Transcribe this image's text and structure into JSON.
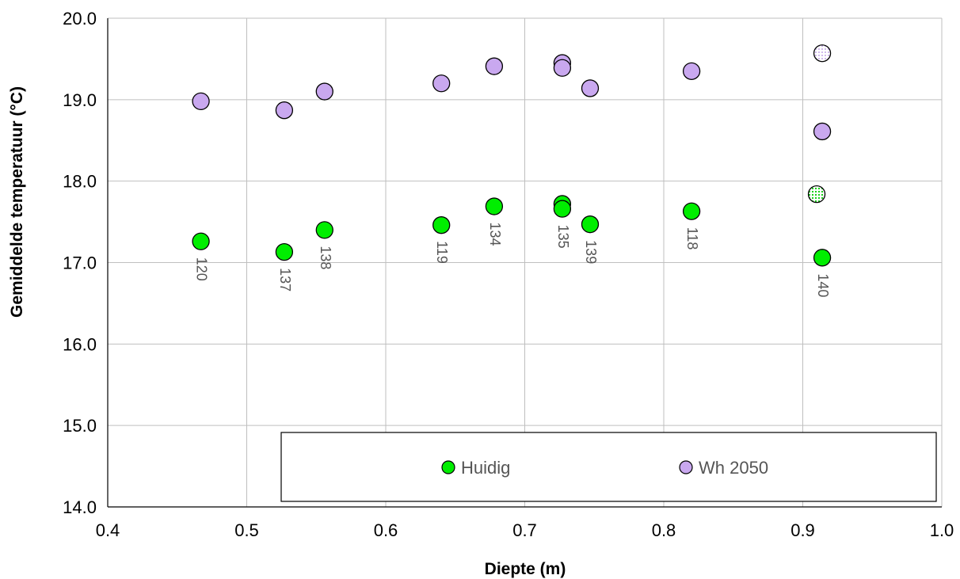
{
  "chart_data": {
    "type": "scatter",
    "xlabel": "Diepte (m)",
    "ylabel": "Gemiddelde temperatuur (°C)",
    "xlim": [
      0.4,
      1.0
    ],
    "ylim": [
      14.0,
      20.0
    ],
    "xticks": [
      "0.4",
      "0.5",
      "0.6",
      "0.7",
      "0.8",
      "0.9",
      "1.0"
    ],
    "yticks": [
      "14.0",
      "15.0",
      "16.0",
      "17.0",
      "18.0",
      "19.0",
      "20.0"
    ],
    "grid": true,
    "legend_position": "bottom-right",
    "colors": {
      "huidig": "#00ee00",
      "wh2050": "#c9a8ef"
    },
    "series": [
      {
        "name": "Huidig",
        "points": [
          {
            "x": 0.467,
            "y": 17.26,
            "label": "120"
          },
          {
            "x": 0.527,
            "y": 17.13,
            "label": "137"
          },
          {
            "x": 0.556,
            "y": 17.4,
            "label": "138"
          },
          {
            "x": 0.64,
            "y": 17.46,
            "label": "119"
          },
          {
            "x": 0.678,
            "y": 17.69,
            "label": "134"
          },
          {
            "x": 0.727,
            "y": 17.72,
            "label": ""
          },
          {
            "x": 0.727,
            "y": 17.66,
            "label": "135"
          },
          {
            "x": 0.747,
            "y": 17.47,
            "label": "139"
          },
          {
            "x": 0.82,
            "y": 17.63,
            "label": "118"
          },
          {
            "x": 0.91,
            "y": 17.84,
            "label": "",
            "dotted": true
          },
          {
            "x": 0.914,
            "y": 17.06,
            "label": "140"
          }
        ]
      },
      {
        "name": "Wh 2050",
        "points": [
          {
            "x": 0.467,
            "y": 18.98
          },
          {
            "x": 0.527,
            "y": 18.87
          },
          {
            "x": 0.556,
            "y": 19.1
          },
          {
            "x": 0.64,
            "y": 19.2
          },
          {
            "x": 0.678,
            "y": 19.41
          },
          {
            "x": 0.727,
            "y": 19.45
          },
          {
            "x": 0.727,
            "y": 19.39
          },
          {
            "x": 0.747,
            "y": 19.14
          },
          {
            "x": 0.82,
            "y": 19.35
          },
          {
            "x": 0.914,
            "y": 19.57,
            "dotted": true
          },
          {
            "x": 0.914,
            "y": 18.61
          }
        ]
      }
    ]
  }
}
